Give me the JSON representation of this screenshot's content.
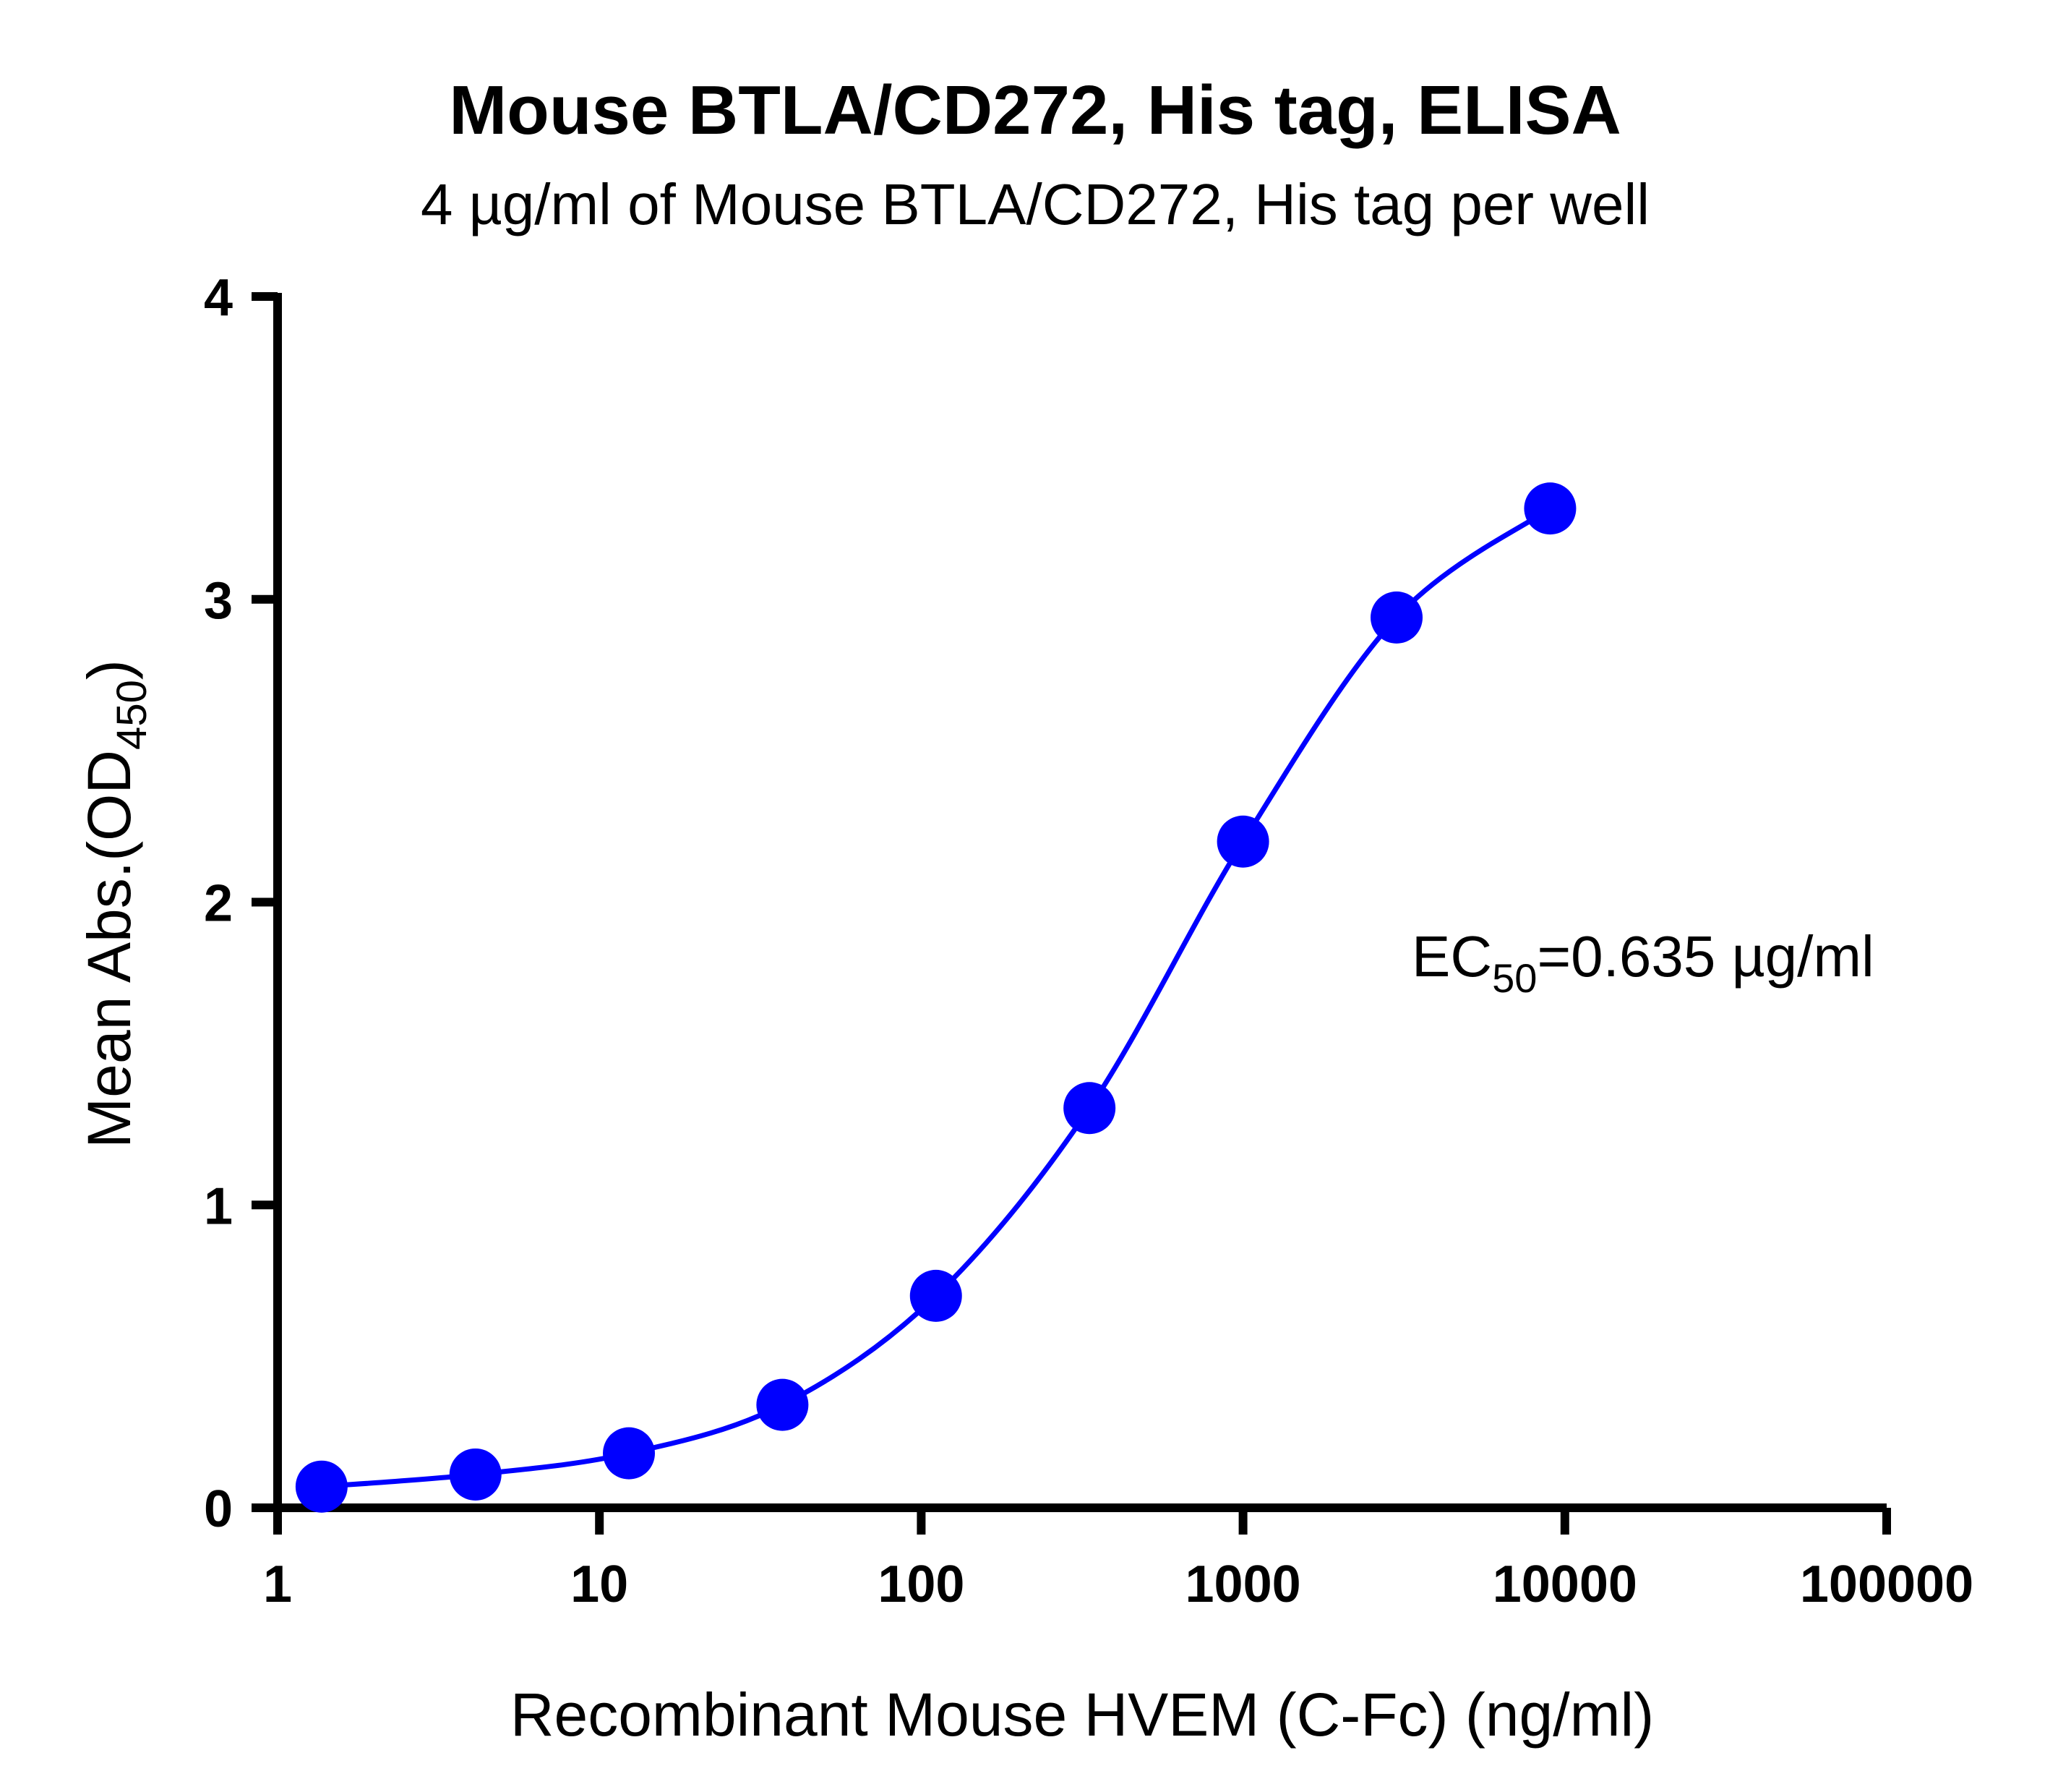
{
  "chart_data": {
    "type": "scatter",
    "title": "Mouse BTLA/CD272, His tag, ELISA",
    "subtitle": "4 µg/ml of Mouse BTLA/CD272, His tag per well",
    "xlabel": "Recombinant Mouse HVEM (C-Fc) (ng/ml)",
    "ylabel": {
      "main": "Mean Abs.(OD",
      "sub": "450",
      "close": ")"
    },
    "xscale": "log",
    "xlim": [
      1,
      100000
    ],
    "ylim": [
      0,
      4
    ],
    "xticks": [
      "1",
      "10",
      "100",
      "1000",
      "10000",
      "100000"
    ],
    "yticks": [
      "0",
      "1",
      "2",
      "3",
      "4"
    ],
    "grid": false,
    "series": [
      {
        "color": "#0000ff",
        "marker": "circle",
        "fit": "4PL curve",
        "x": [
          1.37,
          4.12,
          12.35,
          37.04,
          111.1,
          333.3,
          1000,
          3000,
          9000
        ],
        "y": [
          0.07,
          0.11,
          0.18,
          0.34,
          0.7,
          1.32,
          2.2,
          2.94,
          3.3
        ]
      }
    ],
    "annotation": {
      "prefix": "EC",
      "sub": "50",
      "suffix": "=0.635 µg/ml"
    }
  }
}
